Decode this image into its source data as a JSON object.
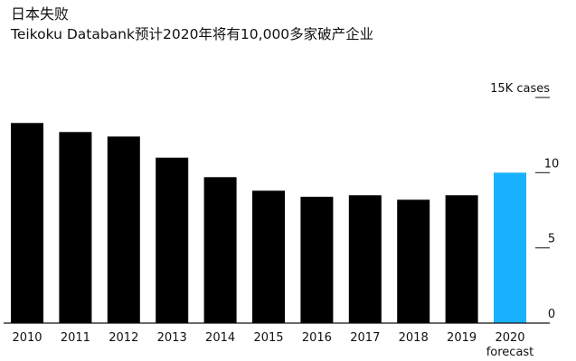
{
  "title": "日本失败",
  "subtitle": "Teikoku Databank预计2020年将有10,000多家破产企业",
  "chart_data": {
    "type": "bar",
    "title": "日本失败",
    "subtitle": "Teikoku Databank预计2020年将有10,000多家破产企业",
    "categories": [
      "2010",
      "2011",
      "2012",
      "2013",
      "2014",
      "2015",
      "2016",
      "2017",
      "2018",
      "2019",
      "2020"
    ],
    "category_sublabels": [
      "",
      "",
      "",
      "",
      "",
      "",
      "",
      "",
      "",
      "",
      "forecast"
    ],
    "values": [
      13300,
      12700,
      12400,
      11000,
      9700,
      8800,
      8400,
      8500,
      8200,
      8500,
      10000
    ],
    "colors": [
      "#000000",
      "#000000",
      "#000000",
      "#000000",
      "#000000",
      "#000000",
      "#000000",
      "#000000",
      "#000000",
      "#000000",
      "#1ab2ff"
    ],
    "ylim": [
      0,
      15000
    ],
    "y_ticks": [
      {
        "value": 0,
        "label": "0"
      },
      {
        "value": 5000,
        "label": "5"
      },
      {
        "value": 10000,
        "label": "10"
      },
      {
        "value": 15000,
        "label": "15K cases"
      }
    ],
    "y_axis_position": "right",
    "grid": false,
    "xlabel": "",
    "ylabel": ""
  }
}
